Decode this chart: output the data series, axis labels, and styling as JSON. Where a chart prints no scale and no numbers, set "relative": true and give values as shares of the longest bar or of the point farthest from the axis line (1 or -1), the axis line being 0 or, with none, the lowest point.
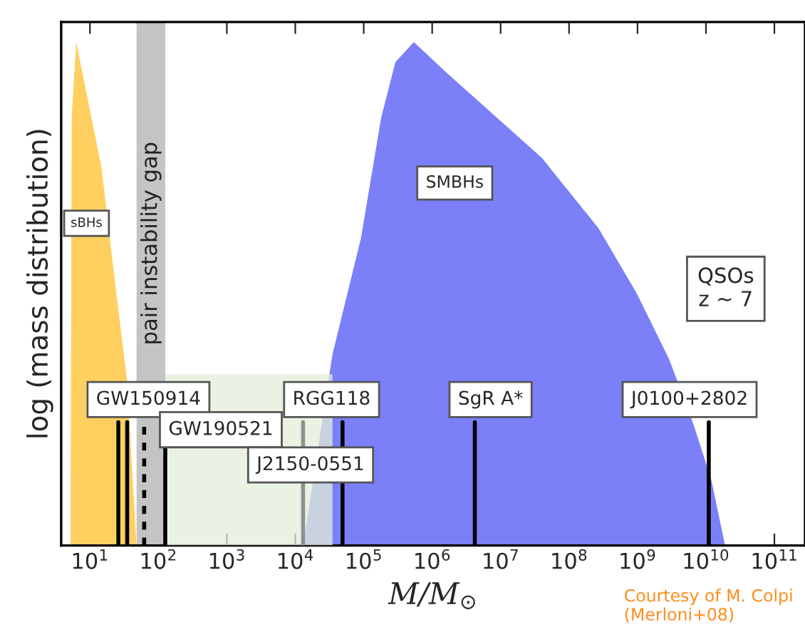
{
  "chart_data": {
    "type": "area",
    "relative": true,
    "xlabel": "M/M$_{⊙}$",
    "ylabel": "log (mass distribution)",
    "log": "x",
    "grid": false,
    "legend": false,
    "tick_labels": "x",
    "xlim": [
      3.8,
      280000000000.0
    ],
    "xticks": [
      {
        "value": 10,
        "label": "10$^{1}$"
      },
      {
        "value": 100,
        "label": "10$^{2}$"
      },
      {
        "value": 1000,
        "label": "10$^{3}$"
      },
      {
        "value": 10000,
        "label": "10$^{4}$"
      },
      {
        "value": 100000,
        "label": "10$^{5}$"
      },
      {
        "value": 1000000,
        "label": "10$^{6}$"
      },
      {
        "value": 10000000,
        "label": "10$^{7}$"
      },
      {
        "value": 100000000,
        "label": "10$^{8}$"
      },
      {
        "value": 1000000000,
        "label": "10$^{9}$"
      },
      {
        "value": 10000000000,
        "label": "10$^{10}$"
      },
      {
        "value": 100000000000,
        "label": "10$^{11}$"
      }
    ],
    "series": [
      {
        "color": "#e3edd9",
        "x": [
          126,
          35000
        ],
        "values": [
          0.34,
          0.34
        ]
      },
      {
        "color": "#ffd060",
        "x": [
          5.2,
          5.4,
          6.3,
          14.8,
          23.4,
          34.7,
          47.9
        ],
        "values": [
          0,
          0.85,
          1.0,
          0.75,
          0.52,
          0.33,
          0
        ]
      },
      {
        "color": "#7b7ff8",
        "x": [
          13000,
          35000,
          91000,
          180000,
          290000,
          540000,
          1600000,
          40000000,
          270000000,
          980000000,
          2900000000,
          6600000000,
          12000000000,
          19000000000
        ],
        "values": [
          0,
          0.38,
          0.61,
          0.85,
          0.96,
          1.0,
          0.94,
          0.77,
          0.63,
          0.5,
          0.37,
          0.24,
          0.13,
          0
        ]
      }
    ],
    "bands": [
      {
        "axis": "x",
        "from": 48,
        "to": 126,
        "label": "pair instability gap",
        "color": "#c4c4c4"
      }
    ],
    "ref_lines": [
      {
        "axis": "x",
        "value": 26,
        "color": "#000000",
        "line_style": "solid",
        "label": "GW150914"
      },
      {
        "axis": "x",
        "value": 35,
        "color": "#000000",
        "line_style": "solid"
      },
      {
        "axis": "x",
        "value": 62,
        "color": "#000000",
        "line_style": "dashed",
        "label": "GW190521"
      },
      {
        "axis": "x",
        "value": 126,
        "color": "#000000",
        "line_style": "solid"
      },
      {
        "axis": "x",
        "value": 13000,
        "color": "#909090",
        "line_style": "solid",
        "label": "J2150-0551"
      },
      {
        "axis": "x",
        "value": 49000,
        "color": "#000000",
        "line_style": "solid",
        "label": "RGG118"
      },
      {
        "axis": "x",
        "value": 4200000,
        "color": "#000000",
        "line_style": "solid",
        "label": "SgR A*"
      },
      {
        "axis": "x",
        "value": 11000000000,
        "color": "#000000",
        "line_style": "solid",
        "label": "J0100+2802"
      }
    ],
    "annotations": [
      "sBHs",
      "SMBHs",
      "QSOs\nz ∼ 7",
      "Courtesy of M. Colpi\n(Merloni+08)"
    ]
  }
}
